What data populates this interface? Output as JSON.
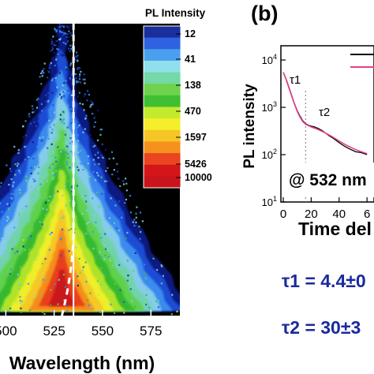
{
  "panel_a": {
    "colorbar_title": "PL Intensity",
    "colorbar_levels": [
      "12",
      "41",
      "138",
      "470",
      "1597",
      "5426",
      "10000"
    ],
    "xlabel": "Wavelength (nm)",
    "xticks": [
      "500",
      "525",
      "550",
      "575"
    ],
    "peak_marker_nm": 535
  },
  "panel_b": {
    "label": "(b)",
    "ylabel": "PL intensity",
    "xlabel": "Time del",
    "excitation": "@ 532 nm",
    "tau1_mark": "τ1",
    "tau2_mark": "τ2",
    "xticks": [
      "0",
      "20",
      "40",
      "6"
    ],
    "yticks": [
      "10^4",
      "10^3",
      "10^2",
      "10^1"
    ],
    "tau1_result": "τ1 = 4.4±0",
    "tau2_result": "τ2 = 30±3",
    "series_colors": {
      "data": "#000000",
      "fit": "#e0408a"
    }
  },
  "chart_data": [
    {
      "type": "heatmap",
      "xlabel": "Wavelength (nm)",
      "xlim": [
        497,
        590
      ],
      "x_ticks": [
        500,
        525,
        550,
        575
      ],
      "colorbar_title": "PL Intensity",
      "levels": [
        12,
        41,
        138,
        470,
        1597,
        5426,
        10000
      ],
      "peak_wavelength_nm": 529,
      "marker_line_nm": 535
    },
    {
      "type": "line",
      "xlabel": "Time del",
      "ylabel": "PL intensity",
      "y_scale": "log",
      "xlim": [
        0,
        65
      ],
      "ylim": [
        10,
        20000
      ],
      "series": [
        {
          "x": [
            0,
            2,
            4,
            6,
            8,
            10,
            12,
            14,
            16,
            18,
            20,
            22,
            25,
            28,
            30,
            33,
            36,
            40,
            44,
            48,
            52,
            56,
            60
          ],
          "y": [
            5500,
            4000,
            2700,
            1800,
            1200,
            850,
            650,
            520,
            450,
            420,
            400,
            390,
            360,
            320,
            290,
            250,
            220,
            180,
            150,
            130,
            115,
            110,
            100
          ]
        },
        {
          "x": [
            0,
            2,
            4,
            6,
            8,
            10,
            12,
            14,
            16,
            20,
            25,
            30,
            35,
            40,
            45,
            50,
            55,
            60
          ],
          "y": [
            5500,
            3900,
            2600,
            1750,
            1180,
            820,
            620,
            500,
            440,
            385,
            340,
            290,
            240,
            195,
            160,
            135,
            118,
            105
          ]
        }
      ],
      "annotations": [
        "τ1",
        "τ2",
        "@ 532 nm"
      ]
    }
  ]
}
